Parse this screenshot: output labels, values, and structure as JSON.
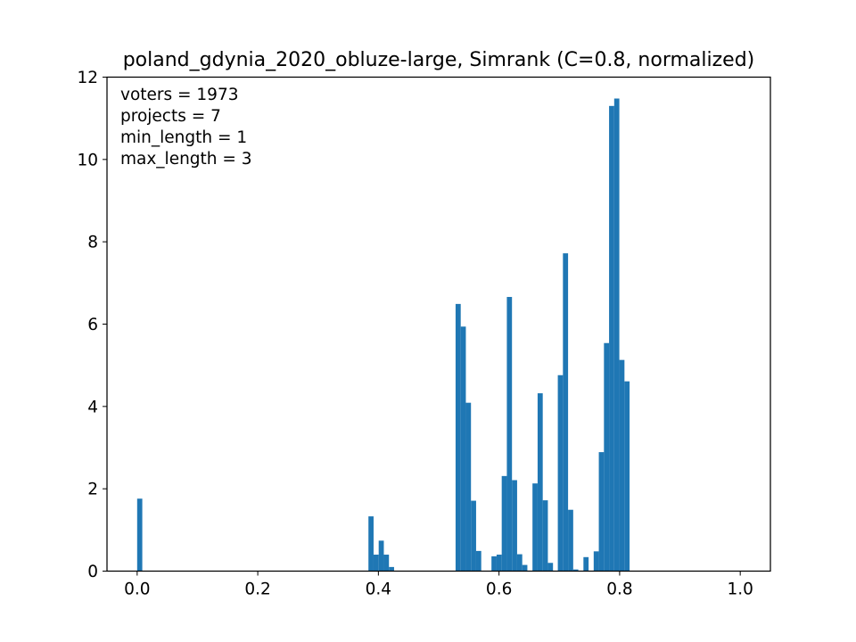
{
  "chart_data": {
    "type": "bar",
    "title": "poland_gdynia_2020_obluze-large, Simrank (C=0.8, normalized)",
    "xlabel": "",
    "ylabel": "",
    "xlim": [
      -0.05,
      1.05
    ],
    "ylim": [
      0,
      12
    ],
    "xticks": [
      0.0,
      0.2,
      0.4,
      0.6,
      0.8,
      1.0
    ],
    "xtick_labels": [
      "0.0",
      "0.2",
      "0.4",
      "0.6",
      "0.8",
      "1.0"
    ],
    "yticks": [
      0,
      2,
      4,
      6,
      8,
      10,
      12
    ],
    "ytick_labels": [
      "0",
      "2",
      "4",
      "6",
      "8",
      "10",
      "12"
    ],
    "bar_color": "#1f77b4",
    "bin_width": 0.00852,
    "bins": [
      {
        "x": 0.0,
        "value": 1.76
      },
      {
        "x": 0.3835,
        "value": 1.33
      },
      {
        "x": 0.392,
        "value": 0.4
      },
      {
        "x": 0.4005,
        "value": 0.74
      },
      {
        "x": 0.409,
        "value": 0.4
      },
      {
        "x": 0.4175,
        "value": 0.1
      },
      {
        "x": 0.528,
        "value": 6.49
      },
      {
        "x": 0.5365,
        "value": 5.94
      },
      {
        "x": 0.545,
        "value": 4.09
      },
      {
        "x": 0.5535,
        "value": 1.71
      },
      {
        "x": 0.562,
        "value": 0.49
      },
      {
        "x": 0.5875,
        "value": 0.36
      },
      {
        "x": 0.596,
        "value": 0.4
      },
      {
        "x": 0.6045,
        "value": 2.31
      },
      {
        "x": 0.613,
        "value": 6.66
      },
      {
        "x": 0.6215,
        "value": 2.21
      },
      {
        "x": 0.63,
        "value": 0.41
      },
      {
        "x": 0.6385,
        "value": 0.15
      },
      {
        "x": 0.6555,
        "value": 2.13
      },
      {
        "x": 0.664,
        "value": 4.32
      },
      {
        "x": 0.6725,
        "value": 1.72
      },
      {
        "x": 0.681,
        "value": 0.2
      },
      {
        "x": 0.6895,
        "value": 0.0
      },
      {
        "x": 0.6975,
        "value": 4.76
      },
      {
        "x": 0.706,
        "value": 7.72
      },
      {
        "x": 0.7145,
        "value": 1.49
      },
      {
        "x": 0.723,
        "value": 0.04
      },
      {
        "x": 0.74,
        "value": 0.34
      },
      {
        "x": 0.757,
        "value": 0.48
      },
      {
        "x": 0.7655,
        "value": 2.89
      },
      {
        "x": 0.774,
        "value": 5.54
      },
      {
        "x": 0.7825,
        "value": 11.3
      },
      {
        "x": 0.791,
        "value": 11.48
      },
      {
        "x": 0.7995,
        "value": 5.13
      },
      {
        "x": 0.808,
        "value": 4.61
      }
    ],
    "annotations": [
      "voters = 1973",
      "projects = 7",
      "min_length = 1",
      "max_length = 3"
    ]
  }
}
